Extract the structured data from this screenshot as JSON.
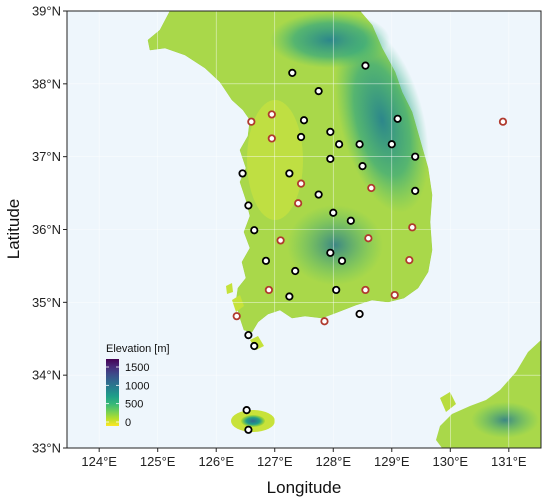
{
  "axes": {
    "xlabel": "Longitude",
    "ylabel": "Latitude",
    "xlim": [
      123.45,
      131.55
    ],
    "ylim": [
      33.0,
      39.0
    ],
    "xticks": [
      {
        "value": 124,
        "label": "124°E"
      },
      {
        "value": 125,
        "label": "125°E"
      },
      {
        "value": 126,
        "label": "126°E"
      },
      {
        "value": 127,
        "label": "127°E"
      },
      {
        "value": 128,
        "label": "128°E"
      },
      {
        "value": 129,
        "label": "129°E"
      },
      {
        "value": 130,
        "label": "130°E"
      },
      {
        "value": 131,
        "label": "131°E"
      }
    ],
    "yticks": [
      {
        "value": 33,
        "label": "33°N"
      },
      {
        "value": 34,
        "label": "34°N"
      },
      {
        "value": 35,
        "label": "35°N"
      },
      {
        "value": 36,
        "label": "36°N"
      },
      {
        "value": 37,
        "label": "37°N"
      },
      {
        "value": 38,
        "label": "38°N"
      },
      {
        "value": 39,
        "label": "39°N"
      }
    ]
  },
  "legend": {
    "title": "Elevation [m]",
    "ticks": [
      "1500",
      "1000",
      "500",
      "0"
    ],
    "colors": [
      "#fde725",
      "#b5de2b",
      "#6ece58",
      "#35b779",
      "#1f9e89",
      "#26828e",
      "#31688e",
      "#3e4989",
      "#482878",
      "#440154"
    ]
  },
  "colors": {
    "sea": "#eef6fc",
    "grid": "#ffffff",
    "station_black": "#000000",
    "station_red": "#b03a2e",
    "station_fill": "#ffffff"
  },
  "stations": [
    {
      "lon": 127.3,
      "lat": 38.15,
      "type": "black"
    },
    {
      "lon": 128.55,
      "lat": 38.25,
      "type": "black"
    },
    {
      "lon": 127.75,
      "lat": 37.9,
      "type": "black"
    },
    {
      "lon": 126.6,
      "lat": 37.48,
      "type": "red"
    },
    {
      "lon": 126.95,
      "lat": 37.58,
      "type": "red"
    },
    {
      "lon": 127.5,
      "lat": 37.5,
      "type": "black"
    },
    {
      "lon": 129.1,
      "lat": 37.52,
      "type": "black"
    },
    {
      "lon": 130.9,
      "lat": 37.48,
      "type": "red"
    },
    {
      "lon": 126.95,
      "lat": 37.25,
      "type": "red"
    },
    {
      "lon": 127.45,
      "lat": 37.27,
      "type": "black"
    },
    {
      "lon": 127.95,
      "lat": 37.34,
      "type": "black"
    },
    {
      "lon": 128.1,
      "lat": 37.17,
      "type": "black"
    },
    {
      "lon": 128.45,
      "lat": 37.17,
      "type": "black"
    },
    {
      "lon": 129.0,
      "lat": 37.17,
      "type": "black"
    },
    {
      "lon": 127.95,
      "lat": 36.97,
      "type": "black"
    },
    {
      "lon": 128.5,
      "lat": 36.87,
      "type": "black"
    },
    {
      "lon": 129.4,
      "lat": 37.0,
      "type": "black"
    },
    {
      "lon": 126.45,
      "lat": 36.77,
      "type": "black"
    },
    {
      "lon": 127.25,
      "lat": 36.77,
      "type": "black"
    },
    {
      "lon": 127.45,
      "lat": 36.63,
      "type": "red"
    },
    {
      "lon": 127.75,
      "lat": 36.48,
      "type": "black"
    },
    {
      "lon": 128.65,
      "lat": 36.57,
      "type": "red"
    },
    {
      "lon": 129.4,
      "lat": 36.53,
      "type": "black"
    },
    {
      "lon": 127.4,
      "lat": 36.36,
      "type": "red"
    },
    {
      "lon": 126.55,
      "lat": 36.33,
      "type": "black"
    },
    {
      "lon": 128.0,
      "lat": 36.23,
      "type": "black"
    },
    {
      "lon": 128.3,
      "lat": 36.12,
      "type": "black"
    },
    {
      "lon": 126.65,
      "lat": 35.99,
      "type": "black"
    },
    {
      "lon": 129.35,
      "lat": 36.03,
      "type": "red"
    },
    {
      "lon": 127.1,
      "lat": 35.85,
      "type": "red"
    },
    {
      "lon": 128.6,
      "lat": 35.88,
      "type": "red"
    },
    {
      "lon": 127.95,
      "lat": 35.68,
      "type": "black"
    },
    {
      "lon": 128.15,
      "lat": 35.57,
      "type": "black"
    },
    {
      "lon": 126.85,
      "lat": 35.57,
      "type": "black"
    },
    {
      "lon": 129.3,
      "lat": 35.58,
      "type": "red"
    },
    {
      "lon": 127.35,
      "lat": 35.43,
      "type": "black"
    },
    {
      "lon": 126.9,
      "lat": 35.17,
      "type": "red"
    },
    {
      "lon": 127.25,
      "lat": 35.08,
      "type": "black"
    },
    {
      "lon": 128.05,
      "lat": 35.17,
      "type": "black"
    },
    {
      "lon": 128.55,
      "lat": 35.17,
      "type": "red"
    },
    {
      "lon": 129.05,
      "lat": 35.1,
      "type": "red"
    },
    {
      "lon": 126.35,
      "lat": 34.81,
      "type": "red"
    },
    {
      "lon": 127.85,
      "lat": 34.74,
      "type": "red"
    },
    {
      "lon": 128.45,
      "lat": 34.84,
      "type": "black"
    },
    {
      "lon": 126.55,
      "lat": 34.55,
      "type": "black"
    },
    {
      "lon": 126.65,
      "lat": 34.4,
      "type": "black"
    },
    {
      "lon": 126.52,
      "lat": 33.52,
      "type": "black"
    },
    {
      "lon": 126.55,
      "lat": 33.25,
      "type": "black"
    }
  ]
}
